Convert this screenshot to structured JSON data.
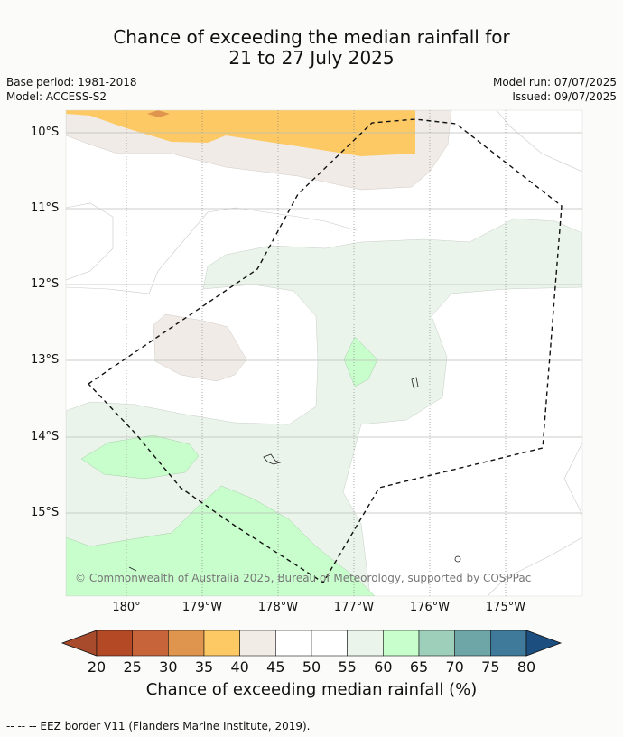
{
  "title": {
    "line1": "Chance of exceeding the median rainfall for",
    "line2": "21 to 27 July 2025"
  },
  "meta": {
    "base_period": "Base period: 1981-2018",
    "model": "Model: ACCESS-S2",
    "model_run": "Model run: 07/07/2025",
    "issued": "Issued: 09/07/2025"
  },
  "map": {
    "lat_labels": [
      "10°S",
      "11°S",
      "12°S",
      "13°S",
      "14°S",
      "15°S"
    ],
    "lon_labels": [
      "180°",
      "179°W",
      "178°W",
      "177°W",
      "176°W",
      "175°W"
    ],
    "copyright": "© Commonwealth of Australia 2025, Bureau of Meteorology, supported by COSPPac"
  },
  "colorbar": {
    "ticks": [
      "20",
      "25",
      "30",
      "35",
      "40",
      "45",
      "50",
      "55",
      "60",
      "65",
      "70",
      "75",
      "80"
    ],
    "colors": [
      "#a84a2c",
      "#b34a25",
      "#c8643a",
      "#e0954f",
      "#fdc964",
      "#f1ece6",
      "#ffffff",
      "#ffffff",
      "#eaf4ea",
      "#c8fdcc",
      "#9dcfbb",
      "#6ea5a6",
      "#3f7a9a",
      "#1c4f80"
    ],
    "label": "Chance of exceeding median rainfall (%)"
  },
  "footer": {
    "legend": "--  --  -- EEZ border V11 (Flanders Marine Institute, 2019)."
  }
}
